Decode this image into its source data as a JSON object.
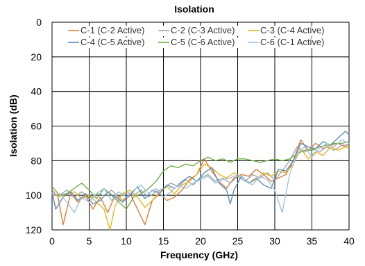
{
  "chart_data": {
    "type": "line",
    "title": "Isolation",
    "xlabel": "Frequency (GHz)",
    "ylabel": "Isolation (dB)",
    "xlim": [
      0,
      40
    ],
    "ylim": [
      0,
      120
    ],
    "y_inverted": true,
    "xticks": [
      "0",
      "5",
      "10",
      "15",
      "20",
      "25",
      "30",
      "35",
      "40"
    ],
    "yticks": [
      "0",
      "20",
      "40",
      "60",
      "80",
      "100",
      "120"
    ],
    "grid": true,
    "legend_position": "top",
    "series": [
      {
        "name": "C-1 (C-2 Active)",
        "color": "#E07B39",
        "points": [
          [
            0,
            97
          ],
          [
            0.8,
            101
          ],
          [
            1.5,
            117
          ],
          [
            2.5,
            99
          ],
          [
            3.5,
            104
          ],
          [
            4.5,
            100
          ],
          [
            5.5,
            108
          ],
          [
            6.5,
            101
          ],
          [
            7.5,
            110
          ],
          [
            8.5,
            100
          ],
          [
            9.5,
            103
          ],
          [
            10.5,
            99
          ],
          [
            11.5,
            108
          ],
          [
            12.5,
            117
          ],
          [
            13.5,
            103
          ],
          [
            14.5,
            99
          ],
          [
            15.5,
            103
          ],
          [
            16.5,
            101
          ],
          [
            17.5,
            97
          ],
          [
            18.5,
            91
          ],
          [
            19.5,
            88
          ],
          [
            20.5,
            79
          ],
          [
            21.5,
            86
          ],
          [
            22.5,
            92
          ],
          [
            23.5,
            96
          ],
          [
            24.5,
            90
          ],
          [
            25.5,
            88
          ],
          [
            26.5,
            89
          ],
          [
            27.5,
            85
          ],
          [
            28.5,
            88
          ],
          [
            29.5,
            92
          ],
          [
            30.5,
            90
          ],
          [
            31.5,
            88
          ],
          [
            32.5,
            80
          ],
          [
            33.5,
            68
          ],
          [
            34.5,
            74
          ],
          [
            35.5,
            70
          ],
          [
            36.5,
            73
          ],
          [
            37.5,
            71
          ],
          [
            38.5,
            70
          ],
          [
            39.5,
            72
          ],
          [
            40,
            70
          ]
        ]
      },
      {
        "name": "C-2 (C-3 Active)",
        "color": "#A5A5A5",
        "points": [
          [
            0,
            99
          ],
          [
            1,
            100
          ],
          [
            2,
            97
          ],
          [
            3,
            101
          ],
          [
            4,
            98
          ],
          [
            5,
            102
          ],
          [
            6,
            99
          ],
          [
            7,
            100
          ],
          [
            8,
            97
          ],
          [
            9,
            101
          ],
          [
            10,
            98
          ],
          [
            11,
            100
          ],
          [
            12,
            97
          ],
          [
            13,
            101
          ],
          [
            14,
            98
          ],
          [
            15,
            96
          ],
          [
            16,
            93
          ],
          [
            17,
            95
          ],
          [
            18,
            91
          ],
          [
            19,
            94
          ],
          [
            20,
            90
          ],
          [
            21,
            88
          ],
          [
            22,
            92
          ],
          [
            23,
            90
          ],
          [
            24,
            93
          ],
          [
            25,
            89
          ],
          [
            26,
            92
          ],
          [
            27,
            88
          ],
          [
            28,
            90
          ],
          [
            29,
            87
          ],
          [
            30,
            91
          ],
          [
            31,
            86
          ],
          [
            32,
            80
          ],
          [
            33,
            72
          ],
          [
            34,
            75
          ],
          [
            35,
            73
          ],
          [
            36,
            75
          ],
          [
            37,
            72
          ],
          [
            38,
            74
          ],
          [
            39,
            71
          ],
          [
            40,
            71
          ]
        ]
      },
      {
        "name": "C-3 (C-4 Active)",
        "color": "#E8B41E",
        "points": [
          [
            0,
            99
          ],
          [
            1,
            101
          ],
          [
            2,
            99
          ],
          [
            3,
            98
          ],
          [
            4,
            102
          ],
          [
            5,
            100
          ],
          [
            6,
            104
          ],
          [
            7,
            108
          ],
          [
            7.8,
            120
          ],
          [
            8.5,
            106
          ],
          [
            9.5,
            99
          ],
          [
            10.5,
            97
          ],
          [
            11.5,
            101
          ],
          [
            12.5,
            107
          ],
          [
            13.5,
            103
          ],
          [
            14.5,
            98
          ],
          [
            15.5,
            95
          ],
          [
            16.5,
            99
          ],
          [
            17.5,
            94
          ],
          [
            18.5,
            92
          ],
          [
            19.5,
            88
          ],
          [
            20.5,
            82
          ],
          [
            21.5,
            84
          ],
          [
            22.5,
            88
          ],
          [
            23.5,
            90
          ],
          [
            24.5,
            87
          ],
          [
            25.5,
            89
          ],
          [
            26.5,
            93
          ],
          [
            27.5,
            91
          ],
          [
            28.5,
            87
          ],
          [
            29.5,
            89
          ],
          [
            30.5,
            86
          ],
          [
            31.5,
            87
          ],
          [
            32.5,
            82
          ],
          [
            33.5,
            73
          ],
          [
            34.5,
            79
          ],
          [
            35.5,
            75
          ],
          [
            36.5,
            77
          ],
          [
            37.5,
            72
          ],
          [
            38.5,
            74
          ],
          [
            39.5,
            72
          ],
          [
            40,
            73
          ]
        ]
      },
      {
        "name": "C-4 (C-5 Active)",
        "color": "#5B8DB8",
        "points": [
          [
            0,
            98
          ],
          [
            0.5,
            108
          ],
          [
            1.5,
            101
          ],
          [
            2.5,
            98
          ],
          [
            3.5,
            103
          ],
          [
            4.5,
            99
          ],
          [
            5.5,
            105
          ],
          [
            6.5,
            103
          ],
          [
            7.5,
            98
          ],
          [
            8.5,
            101
          ],
          [
            9.5,
            104
          ],
          [
            10.5,
            100
          ],
          [
            11.5,
            95
          ],
          [
            12.5,
            102
          ],
          [
            13.5,
            97
          ],
          [
            14.5,
            99
          ],
          [
            15.5,
            94
          ],
          [
            16.5,
            96
          ],
          [
            17.5,
            92
          ],
          [
            18.5,
            89
          ],
          [
            19.5,
            92
          ],
          [
            20.5,
            87
          ],
          [
            21.5,
            84
          ],
          [
            22.5,
            93
          ],
          [
            23.5,
            97
          ],
          [
            24,
            105
          ],
          [
            24.5,
            97
          ],
          [
            25.5,
            89
          ],
          [
            26.5,
            93
          ],
          [
            27.5,
            90
          ],
          [
            28.5,
            94
          ],
          [
            29.5,
            96
          ],
          [
            30.5,
            85
          ],
          [
            31.5,
            86
          ],
          [
            32.5,
            80
          ],
          [
            33.5,
            70
          ],
          [
            34.5,
            72
          ],
          [
            35.5,
            73
          ],
          [
            36.5,
            69
          ],
          [
            37.5,
            71
          ],
          [
            38.5,
            67
          ],
          [
            39.5,
            63
          ],
          [
            40,
            65
          ]
        ]
      },
      {
        "name": "C-5 (C-6 Active)",
        "color": "#70AD47",
        "points": [
          [
            0,
            95
          ],
          [
            1,
            100
          ],
          [
            2,
            99
          ],
          [
            3,
            96
          ],
          [
            4,
            93
          ],
          [
            5,
            97
          ],
          [
            6,
            102
          ],
          [
            7,
            96
          ],
          [
            8,
            100
          ],
          [
            9,
            104
          ],
          [
            10,
            108
          ],
          [
            11,
            101
          ],
          [
            12,
            99
          ],
          [
            13,
            96
          ],
          [
            14,
            92
          ],
          [
            15,
            86
          ],
          [
            16,
            83
          ],
          [
            17,
            84
          ],
          [
            18,
            82
          ],
          [
            19,
            83
          ],
          [
            20,
            80
          ],
          [
            21,
            78
          ],
          [
            22,
            80
          ],
          [
            23,
            79
          ],
          [
            24,
            81
          ],
          [
            25,
            79
          ],
          [
            26,
            79
          ],
          [
            27,
            80
          ],
          [
            28,
            81
          ],
          [
            29,
            80
          ],
          [
            30,
            79
          ],
          [
            31,
            80
          ],
          [
            32,
            79
          ],
          [
            33,
            76
          ],
          [
            34,
            74
          ],
          [
            35,
            74
          ],
          [
            36,
            72
          ],
          [
            37,
            71
          ],
          [
            38,
            70
          ],
          [
            39,
            70
          ],
          [
            40,
            69
          ]
        ]
      },
      {
        "name": "C-6 (C-1 Active)",
        "color": "#9DC3E6",
        "points": [
          [
            0,
            100
          ],
          [
            1,
            99
          ],
          [
            2,
            104
          ],
          [
            3,
            110
          ],
          [
            4,
            101
          ],
          [
            5,
            104
          ],
          [
            6,
            99
          ],
          [
            7,
            96
          ],
          [
            8,
            103
          ],
          [
            9,
            98
          ],
          [
            10,
            101
          ],
          [
            11,
            97
          ],
          [
            12,
            94
          ],
          [
            13,
            99
          ],
          [
            14,
            96
          ],
          [
            15,
            101
          ],
          [
            16,
            98
          ],
          [
            17,
            94
          ],
          [
            18,
            96
          ],
          [
            19,
            93
          ],
          [
            20,
            91
          ],
          [
            21,
            89
          ],
          [
            22,
            93
          ],
          [
            23,
            91
          ],
          [
            24,
            90
          ],
          [
            25,
            88
          ],
          [
            26,
            91
          ],
          [
            27,
            94
          ],
          [
            28,
            89
          ],
          [
            29,
            91
          ],
          [
            30,
            97
          ],
          [
            31,
            110
          ],
          [
            32,
            88
          ],
          [
            33,
            76
          ],
          [
            34,
            72
          ],
          [
            35,
            78
          ],
          [
            36,
            73
          ],
          [
            37,
            70
          ],
          [
            38,
            72
          ],
          [
            39,
            68
          ],
          [
            40,
            70
          ]
        ]
      }
    ]
  }
}
